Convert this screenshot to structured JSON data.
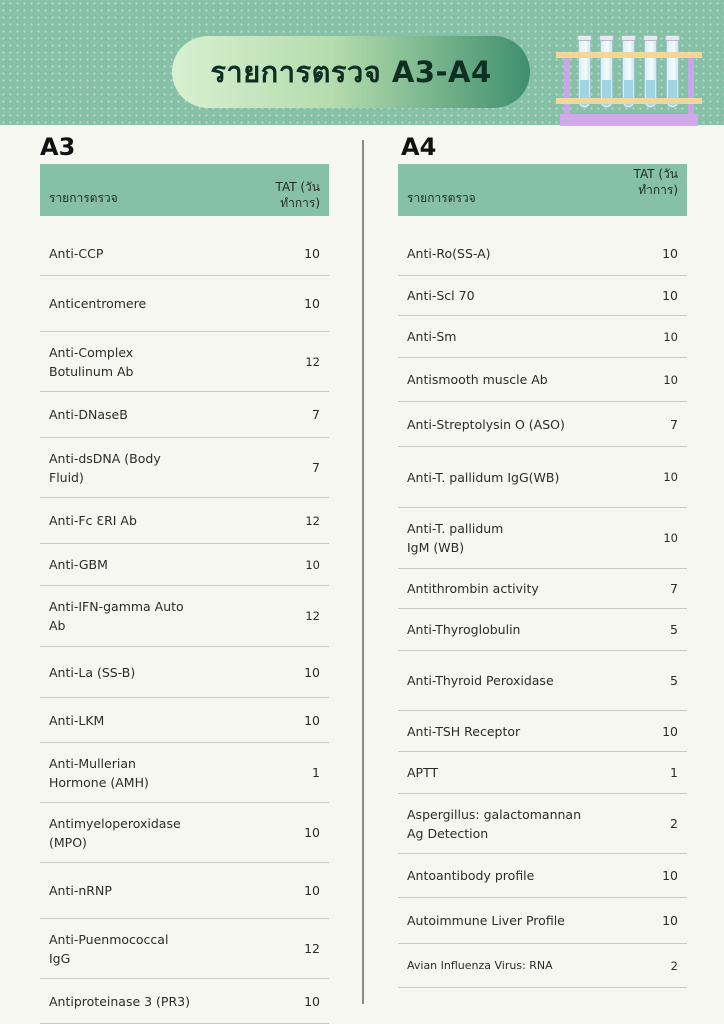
{
  "header": {
    "title": "รายการตรวจ A3-A4"
  },
  "a3": {
    "section_title": "A3",
    "col_test": "รายการตรวจ",
    "col_tat": "TAT (วันทำการ)",
    "rows": [
      {
        "name": "Anti-CCP",
        "tat": "10"
      },
      {
        "name": "Anticentromere",
        "tat": "10"
      },
      {
        "name": "Anti-Complex Botulinum Ab",
        "tat": "12"
      },
      {
        "name": "Anti-DNaseB",
        "tat": "7"
      },
      {
        "name": "Anti-dsDNA (Body Fluid)",
        "tat": "7"
      },
      {
        "name": "Anti-Fc ƐRI Ab",
        "tat": "12"
      },
      {
        "name": "Anti-GBM",
        "tat": "10"
      },
      {
        "name": "Anti-IFN-gamma Auto Ab",
        "tat": "12"
      },
      {
        "name": "Anti-La (SS-B)",
        "tat": "10"
      },
      {
        "name": "Anti-LKM",
        "tat": "10"
      },
      {
        "name": "Anti-Mullerian Hormone (AMH)",
        "tat": "1"
      },
      {
        "name": "Antimyeloperoxidase (MPO)",
        "tat": "10"
      },
      {
        "name": "Anti-nRNP",
        "tat": "10"
      },
      {
        "name": "Anti-Puenmococcal IgG",
        "tat": "12"
      },
      {
        "name": "Antiproteinase 3 (PR3)",
        "tat": "10"
      }
    ]
  },
  "a4": {
    "section_title": "A4",
    "col_test": "รายการตรวจ",
    "col_tat": "TAT (วันทำการ)",
    "rows": [
      {
        "name": "Anti-Ro(SS-A)",
        "tat": "10"
      },
      {
        "name": "Anti-Scl 70",
        "tat": "10"
      },
      {
        "name": "Anti-Sm",
        "tat": "10"
      },
      {
        "name": "Antismooth muscle Ab",
        "tat": "10"
      },
      {
        "name": "Anti-Streptolysin O (ASO)",
        "tat": "7"
      },
      {
        "name": "Anti-T. pallidum IgG(WB)",
        "tat": "10"
      },
      {
        "name": "Anti-T. pallidum IgM (WB)",
        "tat": "10"
      },
      {
        "name": "Antithrombin activity",
        "tat": "7"
      },
      {
        "name": "Anti-Thyroglobulin",
        "tat": "5"
      },
      {
        "name": "Anti-Thyroid Peroxidase",
        "tat": "5"
      },
      {
        "name": "Anti-TSH Receptor",
        "tat": "10"
      },
      {
        "name": "APTT",
        "tat": "1"
      },
      {
        "name": "Aspergillus: galactomannan Ag Detection",
        "tat": "2"
      },
      {
        "name": "Antoantibody profile",
        "tat": "10"
      },
      {
        "name": "Autoimmune Liver Profile",
        "tat": "10"
      },
      {
        "name": "Avian Influenza Virus: RNA",
        "tat": "2"
      }
    ]
  }
}
